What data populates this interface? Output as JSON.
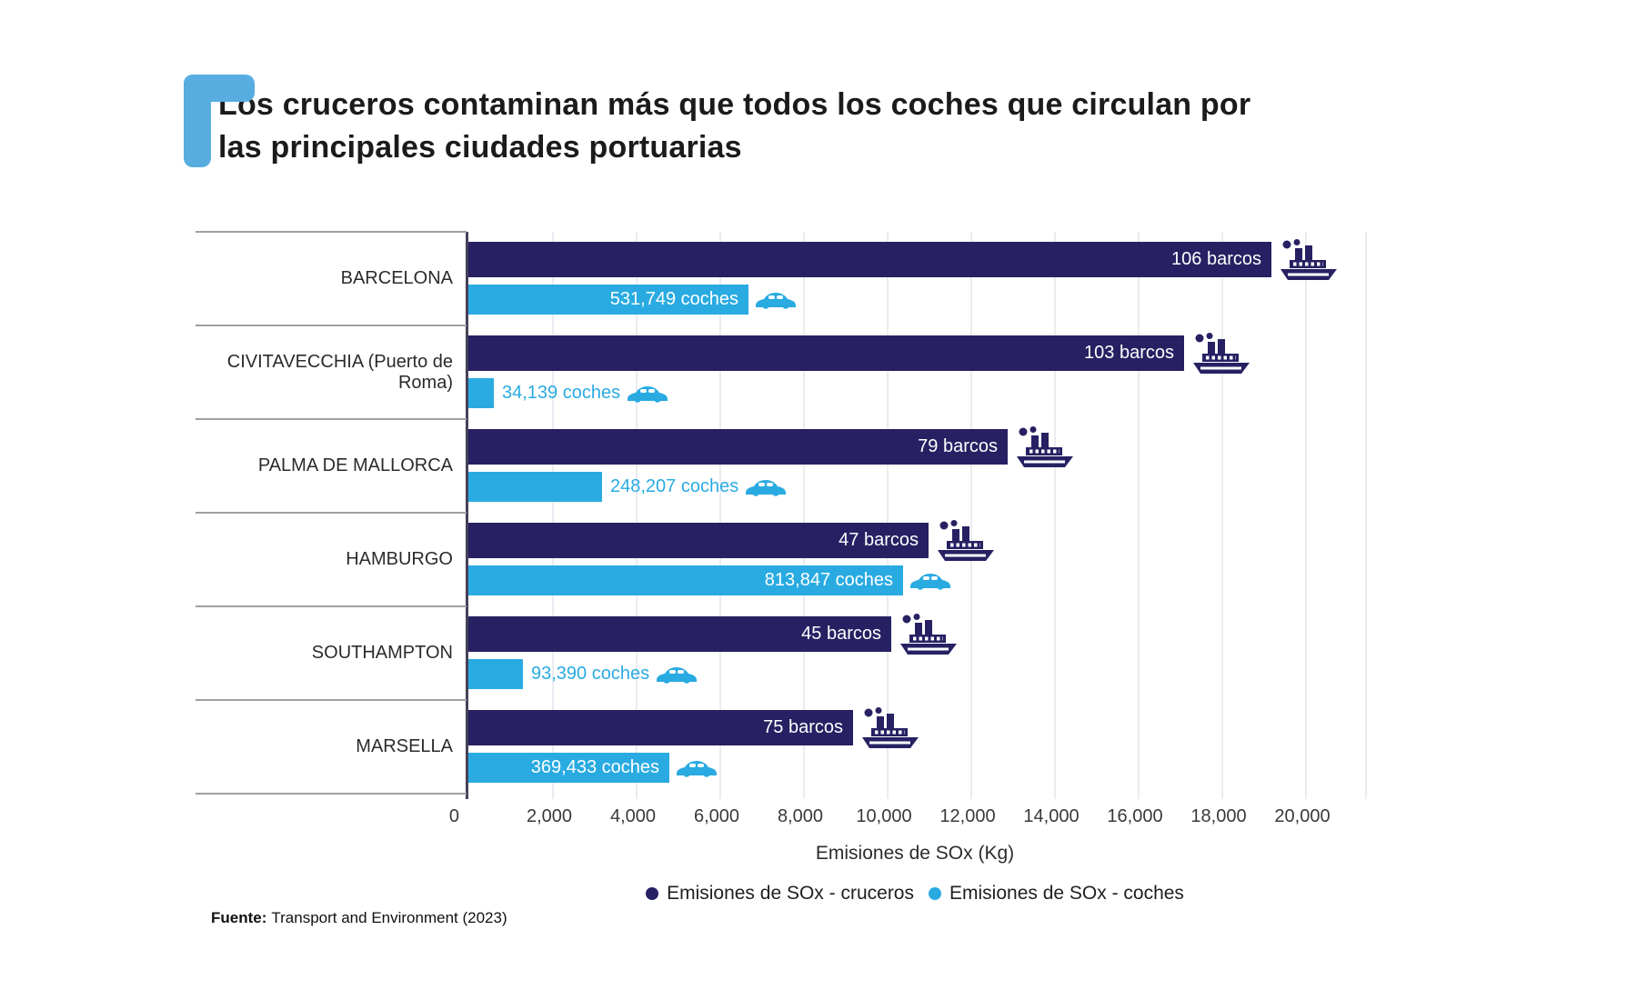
{
  "title": "Los cruceros contaminan más que todos los coches que circulan por las principales ciudades portuarias",
  "chart_data": {
    "type": "bar",
    "orientation": "horizontal",
    "title": "Los cruceros contaminan más que todos los coches que circulan por las principales ciudades portuarias",
    "xlabel": "Emisiones de SOx (Kg)",
    "ylabel": "",
    "grid": true,
    "legend_position": "bottom",
    "categories": [
      "BARCELONA",
      "CIVITAVECCHIA (Puerto de Roma)",
      "PALMA DE MALLORCA",
      "HAMBURGO",
      "SOUTHAMPTON",
      "MARSELLA"
    ],
    "axis": {
      "min": 0,
      "max": 20000,
      "step": 2000,
      "ticks": [
        "0",
        "2,000",
        "4,000",
        "6,000",
        "8,000",
        "10,000",
        "12,000",
        "14,000",
        "16,000",
        "18,000",
        "20,000"
      ],
      "label": "Emisiones de SOx (Kg)"
    },
    "series": [
      {
        "name": "Emisiones de SOx - cruceros",
        "color": "#272163",
        "icon": "cruise-ship-icon",
        "values": [
          19200,
          17100,
          12900,
          11000,
          10100,
          9200
        ],
        "bar_labels": [
          "106 barcos",
          "103 barcos",
          "79 barcos",
          "47 barcos",
          "45 barcos",
          "75 barcos"
        ]
      },
      {
        "name": "Emisiones de SOx - coches",
        "color": "#29abe2",
        "icon": "car-icon",
        "values": [
          6700,
          600,
          3200,
          10400,
          1300,
          4800
        ],
        "bar_labels": [
          "531,749 coches",
          "34,139 coches",
          "248,207 coches",
          "813,847 coches",
          "93,390 coches",
          "369,433 coches"
        ],
        "label_inside": [
          true,
          false,
          false,
          true,
          false,
          true
        ]
      }
    ]
  },
  "source": {
    "prefix": "Fuente:",
    "text": "Transport and Environment (2023)"
  },
  "decor": {
    "bracket_color": "#58ade0",
    "separator_color": "#a0a0a0"
  }
}
